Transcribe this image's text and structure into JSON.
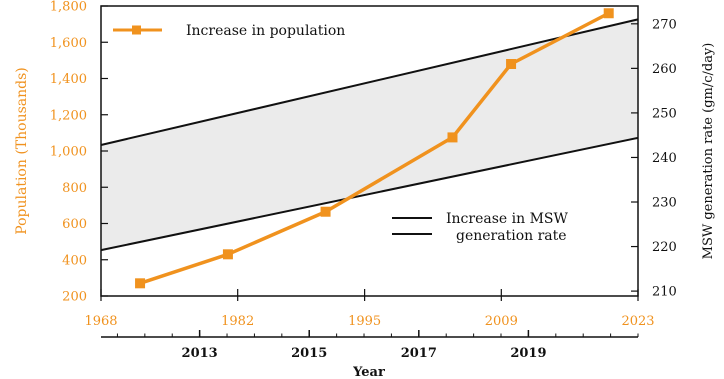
{
  "chart_data": {
    "type": "line",
    "top_axis": {
      "ticks": [
        "1968",
        "1982",
        "1995",
        "2009",
        "2023"
      ],
      "range": [
        1968,
        2023
      ]
    },
    "bottom_axis": {
      "label": "Year",
      "ticks": [
        "2013",
        "2015",
        "2017",
        "2019"
      ],
      "range": [
        2011.2,
        2021.0
      ]
    },
    "left_axis": {
      "label": "Population (Thousands)",
      "range": [
        200,
        1800
      ],
      "ticks": [
        "200",
        "400",
        "600",
        "800",
        "1,000",
        "1,200",
        "1,400",
        "1,600",
        "1,800"
      ]
    },
    "right_axis": {
      "label": "MSW generation rate (gm/c/day)",
      "range": [
        208.9,
        274
      ],
      "ticks": [
        "210",
        "220",
        "230",
        "240",
        "250",
        "260",
        "270"
      ]
    },
    "series": [
      {
        "name": "Increase in population",
        "axis": "left",
        "x_axis": "top",
        "color": "#f0921e",
        "marker": "square",
        "x": [
          1972,
          1981,
          1991,
          2004,
          2010,
          2020
        ],
        "y": [
          270,
          430,
          665,
          1075,
          1480,
          1760
        ]
      },
      {
        "name": "Increase in MSW generation rate",
        "axis": "right",
        "x_axis": "top",
        "color": "#111111",
        "band_fill": "#ebebeb",
        "upper": {
          "x": [
            1968,
            2023
          ],
          "y": [
            242.8,
            271
          ]
        },
        "lower": {
          "x": [
            1968,
            2023
          ],
          "y": [
            219.2,
            244.4
          ]
        }
      }
    ],
    "legend": [
      {
        "text": "Increase in population",
        "placement": "top-left"
      },
      {
        "lines": [
          "Increase in MSW",
          "generation rate"
        ],
        "placement": "bottom-right"
      }
    ],
    "grid": false
  }
}
